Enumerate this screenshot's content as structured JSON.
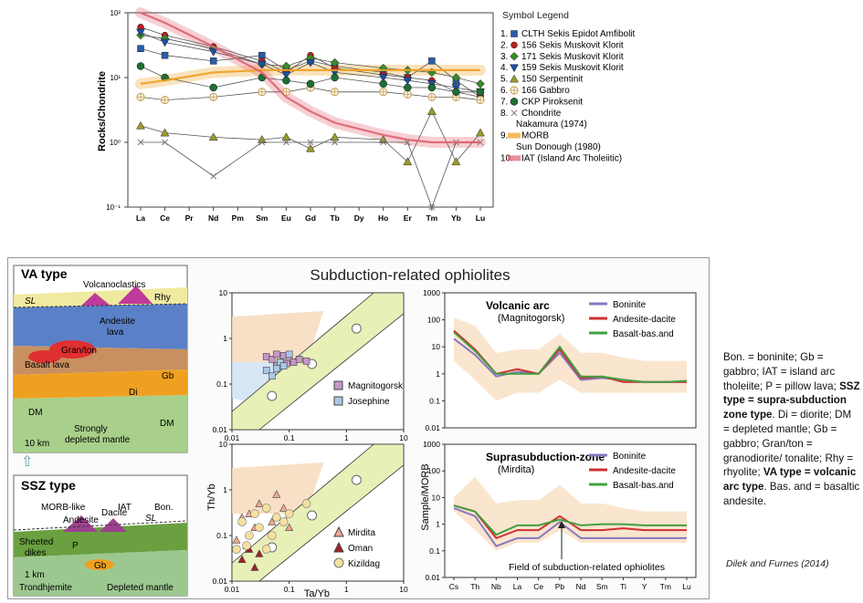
{
  "chart_data": [
    {
      "type": "line",
      "ylabel": "Rocks/Chondrite",
      "yscale": "log",
      "ylim": [
        0.1,
        100
      ],
      "y_ticks": [
        "10²",
        "10¹",
        "10⁰",
        "10⁻¹"
      ],
      "categories": [
        "La",
        "Ce",
        "Pr",
        "Nd",
        "Pm",
        "Sm",
        "Eu",
        "Gd",
        "Tb",
        "Dy",
        "Ho",
        "Er",
        "Tm",
        "Yb",
        "Lu"
      ],
      "legend_title": "Symbol Legend",
      "legend": [
        {
          "num": "1.",
          "name": "CLTH Sekis Epidot Amfibolit",
          "color": "#2a5caa",
          "marker": "square"
        },
        {
          "num": "2.",
          "name": "156 Sekis Muskovit Klorit",
          "color": "#b81e1e",
          "marker": "circle"
        },
        {
          "num": "3.",
          "name": "171 Sekis Muskovit Klorit",
          "color": "#3a8a2a",
          "marker": "diamond"
        },
        {
          "num": "4.",
          "name": "159 Sekis Muskovit Klorit",
          "color": "#1e4fa0",
          "marker": "tri-down"
        },
        {
          "num": "5.",
          "name": "150 Serpentinit",
          "color": "#9b9b2a",
          "marker": "tri-up"
        },
        {
          "num": "6.",
          "name": "166 Gabbro",
          "color": "#c9a862",
          "marker": "cross-circle"
        },
        {
          "num": "7.",
          "name": "CKP Piroksenit",
          "color": "#1f6e35",
          "marker": "hex"
        },
        {
          "num": "8.",
          "name": "Chondrite",
          "sub": "Nakamura (1974)",
          "color": "#777777",
          "marker": "x"
        },
        {
          "num": "9.",
          "name": "MORB",
          "sub": "Sun Donough (1980)",
          "color": "#f0a020",
          "marker": "band"
        },
        {
          "num": "10.",
          "name": "IAT (Island Arc Tholeiitic)",
          "color": "#e06070",
          "marker": "band"
        }
      ],
      "series": [
        {
          "name": "CLTH Sekis Epidot Amfibolit",
          "values": [
            28,
            22,
            null,
            18,
            null,
            22,
            13,
            18,
            15,
            null,
            12,
            10,
            18,
            9,
            5
          ],
          "color": "#2a5caa"
        },
        {
          "name": "156 Sekis Muskovit Klorit",
          "values": [
            60,
            45,
            null,
            30,
            null,
            18,
            12,
            22,
            14,
            null,
            11,
            10,
            9,
            6,
            5
          ],
          "color": "#b81e1e"
        },
        {
          "name": "171 Sekis Muskovit Klorit",
          "values": [
            45,
            40,
            null,
            28,
            null,
            16,
            15,
            20,
            17,
            null,
            14,
            13,
            12,
            10,
            8
          ],
          "color": "#3a8a2a"
        },
        {
          "name": "159 Sekis Muskovit Klorit",
          "values": [
            50,
            35,
            null,
            25,
            null,
            16,
            11,
            17,
            12,
            null,
            10,
            9,
            8,
            7,
            6
          ],
          "color": "#1e4fa0"
        },
        {
          "name": "150 Serpentinit",
          "values": [
            1.8,
            1.4,
            null,
            1.2,
            null,
            1.1,
            1.2,
            0.8,
            1.2,
            null,
            1.1,
            0.5,
            3,
            0.5,
            1.4
          ],
          "color": "#9b9b2a"
        },
        {
          "name": "166 Gabbro",
          "values": [
            5,
            4.5,
            null,
            5,
            null,
            6,
            6,
            7,
            6,
            null,
            6,
            5.5,
            5,
            5,
            4.5
          ],
          "color": "#c9a862"
        },
        {
          "name": "CKP Piroksenit",
          "values": [
            15,
            10,
            null,
            7,
            null,
            10,
            9,
            8,
            10,
            null,
            8,
            7,
            7,
            6,
            6
          ],
          "color": "#1f6e35"
        },
        {
          "name": "Chondrite",
          "values": [
            1,
            1,
            null,
            0.3,
            null,
            1,
            1,
            1,
            1,
            null,
            1,
            1,
            0.1,
            1,
            1
          ],
          "color": "#777777"
        },
        {
          "name": "MORB",
          "values": [
            8,
            9,
            null,
            12,
            null,
            13,
            13,
            13,
            13,
            null,
            13,
            13,
            13,
            13,
            13
          ],
          "color": "#f0a020"
        },
        {
          "name": "IAT",
          "values": [
            100,
            70,
            null,
            30,
            null,
            12,
            5,
            3,
            2,
            null,
            1.3,
            1.1,
            1,
            1,
            1
          ],
          "color": "#e06070"
        }
      ]
    },
    {
      "type": "scatter",
      "title": "Subduction-related ophiolites",
      "xlabel": "Ta/Yb",
      "ylabel": "Th/Yb",
      "xscale": "log",
      "yscale": "log",
      "xlim": [
        0.01,
        10
      ],
      "ylim": [
        0.01,
        10
      ],
      "x_ticks": [
        "0.01",
        "0.1",
        "1",
        "10"
      ],
      "y_ticks": [
        "10",
        "1",
        "0.1",
        "0.01"
      ],
      "panels": [
        {
          "legend": [
            "Magnitogorsk",
            "Josephine"
          ],
          "series": [
            {
              "name": "Magnitogorsk",
              "color": "#c896c8",
              "points": [
                [
                  0.04,
                  0.4
                ],
                [
                  0.05,
                  0.35
                ],
                [
                  0.06,
                  0.45
                ],
                [
                  0.07,
                  0.3
                ],
                [
                  0.08,
                  0.42
                ],
                [
                  0.1,
                  0.38
                ],
                [
                  0.12,
                  0.3
                ],
                [
                  0.15,
                  0.35
                ],
                [
                  0.2,
                  0.32
                ],
                [
                  0.06,
                  0.25
                ],
                [
                  0.09,
                  0.28
                ]
              ]
            },
            {
              "name": "Josephine",
              "color": "#a8c8e8",
              "points": [
                [
                  0.04,
                  0.2
                ],
                [
                  0.05,
                  0.15
                ],
                [
                  0.06,
                  0.22
                ],
                [
                  0.07,
                  0.3
                ],
                [
                  0.08,
                  0.25
                ],
                [
                  0.1,
                  0.45
                ]
              ]
            }
          ]
        },
        {
          "legend": [
            "Mirdita",
            "Oman",
            "Kizildag"
          ],
          "series": [
            {
              "name": "Mirdita",
              "color": "#f0a890",
              "points": [
                [
                  0.02,
                  0.3
                ],
                [
                  0.025,
                  0.15
                ],
                [
                  0.03,
                  0.5
                ],
                [
                  0.05,
                  0.2
                ],
                [
                  0.06,
                  0.8
                ],
                [
                  0.08,
                  0.4
                ],
                [
                  0.1,
                  0.15
                ],
                [
                  0.012,
                  0.08
                ],
                [
                  0.015,
                  0.25
                ]
              ]
            },
            {
              "name": "Oman",
              "color": "#a0202a",
              "points": [
                [
                  0.015,
                  0.03
                ],
                [
                  0.02,
                  0.05
                ],
                [
                  0.025,
                  0.02
                ],
                [
                  0.03,
                  0.04
                ],
                [
                  0.018,
                  0.06
                ]
              ]
            },
            {
              "name": "Kizildag",
              "color": "#f5e0a0",
              "points": [
                [
                  0.015,
                  0.2
                ],
                [
                  0.02,
                  0.1
                ],
                [
                  0.025,
                  0.3
                ],
                [
                  0.03,
                  0.15
                ],
                [
                  0.04,
                  0.4
                ],
                [
                  0.05,
                  0.1
                ],
                [
                  0.06,
                  0.25
                ],
                [
                  0.08,
                  0.2
                ],
                [
                  0.1,
                  0.3
                ],
                [
                  0.2,
                  0.5
                ],
                [
                  0.012,
                  0.05
                ],
                [
                  0.018,
                  0.06
                ],
                [
                  0.04,
                  0.05
                ]
              ]
            }
          ]
        }
      ]
    },
    {
      "type": "line",
      "ylabel": "Sample/MORB",
      "yscale": "log",
      "ylim": [
        0.01,
        1000
      ],
      "y_ticks": [
        "1000",
        "100",
        "10",
        "1",
        "0.1",
        "0.01"
      ],
      "categories": [
        "Cs",
        "Th",
        "Nb",
        "La",
        "Ce",
        "Pb",
        "Nd",
        "Sm",
        "Ti",
        "Y",
        "Tm",
        "Lu"
      ],
      "panels": [
        {
          "title": "Volcanic arc",
          "subtitle": "(Magnitogorsk)",
          "series": [
            {
              "name": "Boninite",
              "color": "#8878c0",
              "values": [
                20,
                5,
                0.8,
                1.2,
                1,
                6,
                0.6,
                0.7,
                0.6,
                0.5,
                0.5,
                0.5
              ]
            },
            {
              "name": "Andesite-dacite",
              "color": "#d03030",
              "values": [
                40,
                8,
                1,
                1.5,
                1,
                8,
                0.7,
                0.8,
                0.5,
                0.5,
                0.5,
                0.5
              ]
            },
            {
              "name": "Basalt-bas.and",
              "color": "#40a040",
              "values": [
                35,
                7,
                1,
                1,
                1,
                10,
                0.8,
                0.8,
                0.6,
                0.5,
                0.5,
                0.55
              ]
            }
          ]
        },
        {
          "title": "Suprasubduction-zone",
          "subtitle": "(Mirdita)",
          "annotation": "Field of subduction-related ophiolites",
          "series": [
            {
              "name": "Boninite",
              "color": "#8878c0",
              "values": [
                4,
                2,
                0.15,
                0.3,
                0.3,
                1.2,
                0.3,
                0.3,
                0.3,
                0.3,
                0.3,
                0.3
              ]
            },
            {
              "name": "Andesite-dacite",
              "color": "#d03030",
              "values": [
                5,
                3,
                0.3,
                0.6,
                0.6,
                2,
                0.6,
                0.6,
                0.7,
                0.6,
                0.6,
                0.6
              ]
            },
            {
              "name": "Basalt-bas.and",
              "color": "#40a040",
              "values": [
                5,
                3,
                0.4,
                0.9,
                0.9,
                1.5,
                0.9,
                1,
                1,
                0.9,
                0.9,
                0.9
              ]
            }
          ]
        }
      ]
    }
  ],
  "diagram": {
    "va_title": "VA type",
    "ssz_title": "SSZ type",
    "va_labels": {
      "sl": "SL",
      "volcanoclastics": "Volcanoclastics",
      "rhy": "Rhy",
      "andesite": "Andesite",
      "lava": "lava",
      "granton": "Gran/ton",
      "basalt": "Basalt lava",
      "gb": "Gb",
      "di": "Di",
      "dm_left": "DM",
      "dm_right": "DM",
      "scale": "10 km",
      "mantle1": "Strongly",
      "mantle2": "depleted mantle"
    },
    "ssz_labels": {
      "morb": "MORB-like",
      "iat": "IAT",
      "bon": "Bon.",
      "sl": "SL",
      "andesite": "Andesite",
      "dacite": "Dacite",
      "sheeted1": "Sheeted",
      "sheeted2": "dikes",
      "p": "P",
      "gb": "Gb",
      "scale": "1 km",
      "trond": "Trondhjemite",
      "depleted": "Depleted mantle"
    }
  },
  "notes": {
    "p1": "Bon. = boninite; Gb = gabbro; IAT = island arc tholeiite; P = pillow lava; ",
    "b1": "SSZ type = supra-subduction zone type",
    "p2": ". Di = diorite; DM = depleted mantle; Gb = gabbro; Gran/ton = granodiorite/ tonalite; Rhy = rhyolite; ",
    "b2": "VA type = volcanic arc type",
    "p3": ". Bas. and = basaltic andesite.",
    "cite": "Dilek and Furnes (2014)"
  }
}
